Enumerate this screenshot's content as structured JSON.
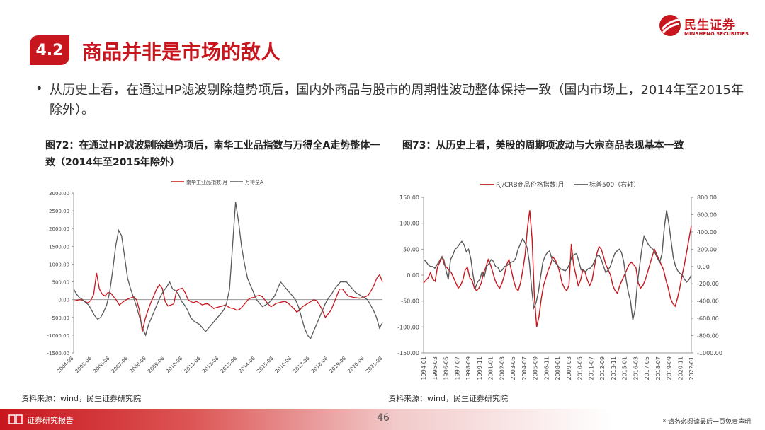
{
  "brand": {
    "name_cn": "民生证券",
    "name_en": "MINSHENG SECURITIES",
    "color": "#c8161e"
  },
  "section": {
    "number": "4.2",
    "title": "商品并非是市场的敌人"
  },
  "bullet": {
    "text": "从历史上看，在通过HP滤波剔除趋势项后，国内外商品与股市的周期性波动整体保持一致（国内市场上，2014年至2015年除外）。"
  },
  "figures": [
    {
      "title": "图72：在通过HP滤波剔除趋势项后，南华工业品指数与万得全A走势整体一致（2014年至2015年除外）",
      "source": "资料来源：wind，民生证券研究院"
    },
    {
      "title": "图73：从历史上看，美股的周期项波动与大宗商品表现基本一致",
      "source": "资料来源：wind，民生证券研究院"
    }
  ],
  "footer": {
    "label": "证券研究报告",
    "page": "46",
    "disclaimer": "* 请务必阅读最后一页免责声明"
  },
  "chart_data": [
    {
      "type": "line",
      "title": "",
      "legend_position": "top-center",
      "grid": false,
      "series": [
        {
          "name": "南华工业品指数:月",
          "color": "#c8161e",
          "values": [
            -40,
            -20,
            0,
            -10,
            -60,
            -90,
            -20,
            150,
            750,
            300,
            150,
            100,
            200,
            180,
            80,
            -20,
            -150,
            -80,
            -20,
            20,
            50,
            80,
            0,
            -300,
            -900,
            -550,
            -300,
            -80,
            100,
            300,
            420,
            320,
            -50,
            -180,
            -150,
            -120,
            250,
            300,
            320,
            200,
            0,
            -60,
            -80,
            -50,
            -100,
            -150,
            -120,
            -120,
            -180,
            -250,
            -220,
            -200,
            -180,
            -150,
            -200,
            -240,
            -250,
            -300,
            -280,
            -200,
            -100,
            0,
            50,
            60,
            100,
            120,
            80,
            -20,
            -120,
            -200,
            -150,
            -100,
            -80,
            -60,
            -50,
            -100,
            -180,
            -250,
            -350,
            -300,
            -200,
            -150,
            -100,
            -50,
            0,
            -30,
            -150,
            -300,
            -500,
            -400,
            -300,
            -100,
            100,
            300,
            300,
            200,
            100,
            80,
            60,
            50,
            40,
            60,
            80,
            120,
            250,
            400,
            600,
            700,
            500
          ]
        },
        {
          "name": "万得全A",
          "color": "#595959",
          "values": [
            300,
            150,
            50,
            0,
            -80,
            -150,
            -300,
            -450,
            -550,
            -500,
            -350,
            -150,
            200,
            800,
            1500,
            1950,
            1800,
            1200,
            600,
            300,
            50,
            -200,
            -500,
            -800,
            -1000,
            -700,
            -500,
            -300,
            -100,
            100,
            250,
            350,
            500,
            300,
            250,
            150,
            -50,
            -150,
            -300,
            -500,
            -600,
            -650,
            -700,
            -800,
            -900,
            -800,
            -700,
            -600,
            -500,
            -400,
            -300,
            -100,
            300,
            1500,
            2750,
            2200,
            1500,
            1000,
            600,
            400,
            200,
            0,
            -100,
            -200,
            -150,
            -100,
            0,
            100,
            300,
            500,
            400,
            300,
            200,
            100,
            0,
            -200,
            -500,
            -800,
            -1000,
            -1100,
            -900,
            -700,
            -500,
            -300,
            -100,
            50,
            150,
            300,
            400,
            500,
            500,
            500,
            400,
            300,
            200,
            150,
            100,
            50,
            0,
            -150,
            -300,
            -500,
            -800,
            -650
          ]
        }
      ],
      "x_start": "2004-06",
      "x_step_months": 2,
      "x_tick_labels": [
        "2004-06",
        "2005-06",
        "2006-06",
        "2007-06",
        "2008-06",
        "2009-06",
        "2010-06",
        "2011-06",
        "2012-06",
        "2013-06",
        "2014-06",
        "2015-06",
        "2016-06",
        "2017-06",
        "2018-06",
        "2019-06",
        "2020-06",
        "2021-06"
      ],
      "y_ticks": [
        "3000.00",
        "2500.00",
        "2000.00",
        "1500.00",
        "1000.00",
        "500.00",
        "0.00",
        "-500.00",
        "-1000.00",
        "-1500.00"
      ],
      "ylim": [
        -1500,
        3000
      ]
    },
    {
      "type": "line",
      "title": "",
      "legend_position": "top-center",
      "grid": false,
      "series": [
        {
          "name": "RJ/CRB商品价格指数:月",
          "color": "#c8161e",
          "axis": "left",
          "values": [
            -15,
            -10,
            -5,
            5,
            -8,
            -12,
            15,
            25,
            35,
            20,
            15,
            10,
            5,
            -5,
            -15,
            -25,
            -20,
            -10,
            10,
            15,
            -5,
            -10,
            -25,
            -30,
            -25,
            -15,
            5,
            15,
            30,
            20,
            5,
            -10,
            -20,
            -25,
            -15,
            0,
            20,
            30,
            10,
            -10,
            -25,
            -30,
            -15,
            10,
            40,
            90,
            125,
            70,
            -40,
            -100,
            -80,
            -45,
            -20,
            -5,
            10,
            20,
            35,
            30,
            20,
            5,
            -15,
            -25,
            -30,
            -20,
            60,
            20,
            0,
            -20,
            -10,
            10,
            5,
            -10,
            -20,
            -10,
            15,
            40,
            55,
            50,
            35,
            20,
            10,
            0,
            -20,
            -30,
            -35,
            -20,
            -10,
            0,
            10,
            20,
            25,
            20,
            15,
            -15,
            -25,
            -20,
            -10,
            5,
            20,
            35,
            50,
            40,
            30,
            20,
            10,
            -10,
            -25,
            -45,
            -55,
            -60,
            -45,
            -25,
            0,
            20,
            45,
            70,
            95
          ]
        },
        {
          "name": "标普500（右轴）",
          "color": "#595959",
          "axis": "right",
          "values": [
            80,
            60,
            20,
            0,
            0,
            -20,
            20,
            60,
            110,
            80,
            -50,
            -150,
            80,
            130,
            200,
            220,
            260,
            290,
            250,
            170,
            200,
            90,
            -100,
            -250,
            -180,
            -150,
            -60,
            -120,
            0,
            30,
            80,
            60,
            0,
            -10,
            -60,
            -40,
            0,
            10,
            30,
            50,
            60,
            100,
            200,
            260,
            320,
            280,
            220,
            50,
            -250,
            -480,
            -420,
            -300,
            -120,
            50,
            120,
            160,
            180,
            90,
            60,
            30,
            0,
            -30,
            -40,
            -50,
            -20,
            40,
            120,
            140,
            150,
            60,
            -40,
            -40,
            -60,
            -30,
            -20,
            10,
            60,
            120,
            130,
            80,
            0,
            -70,
            -40,
            0,
            80,
            150,
            180,
            200,
            160,
            50,
            -150,
            -300,
            -400,
            -620,
            -500,
            -200,
            0,
            200,
            350,
            300,
            250,
            220,
            200,
            150,
            90,
            50,
            150,
            450,
            650,
            500,
            300,
            100,
            0,
            -50,
            -80,
            -100,
            -150,
            -180,
            -150,
            -100
          ]
        }
      ],
      "x_start": "1994-01",
      "x_step_months": 3,
      "x_tick_labels": [
        "1994-01",
        "1995-03",
        "1996-05",
        "1997-07",
        "1998-09",
        "1999-11",
        "2001-01",
        "2002-03",
        "2003-05",
        "2004-07",
        "2005-09",
        "2006-11",
        "2008-01",
        "2009-03",
        "2010-05",
        "2011-07",
        "2012-09",
        "2013-11",
        "2015-01",
        "2016-03",
        "2017-05",
        "2018-07",
        "2019-09",
        "2020-11",
        "2022-01"
      ],
      "y_ticks_left": [
        "150.00",
        "100.00",
        "50.00",
        "0.00",
        "-50.00",
        "-100.00",
        "-150.00"
      ],
      "y_ticks_right": [
        "800.00",
        "600.00",
        "400.00",
        "200.00",
        "0.00",
        "-200.00",
        "-400.00",
        "-600.00",
        "-800.00",
        "-1000.00"
      ],
      "ylim_left": [
        -150,
        150
      ],
      "ylim_right": [
        -1000,
        800
      ]
    }
  ]
}
